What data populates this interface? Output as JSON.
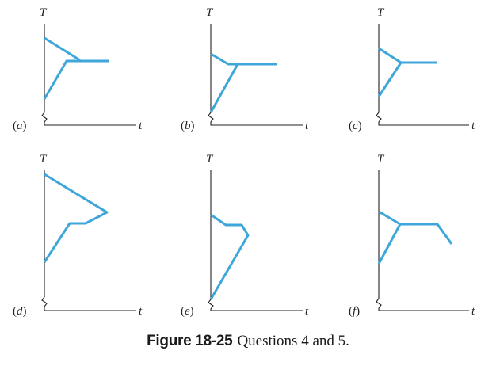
{
  "figure": {
    "y_axis_letter": "T",
    "x_axis_letter": "t",
    "panels": [
      {
        "id": "a",
        "tag": "a"
      },
      {
        "id": "b",
        "tag": "b"
      },
      {
        "id": "c",
        "tag": "c"
      },
      {
        "id": "d",
        "tag": "d"
      },
      {
        "id": "e",
        "tag": "e"
      },
      {
        "id": "f",
        "tag": "f"
      }
    ]
  },
  "caption": {
    "label": "Figure 18-25",
    "text": "Questions 4 and 5."
  },
  "colors": {
    "curve": "#3ea6d8",
    "axis": "#231f20"
  }
}
